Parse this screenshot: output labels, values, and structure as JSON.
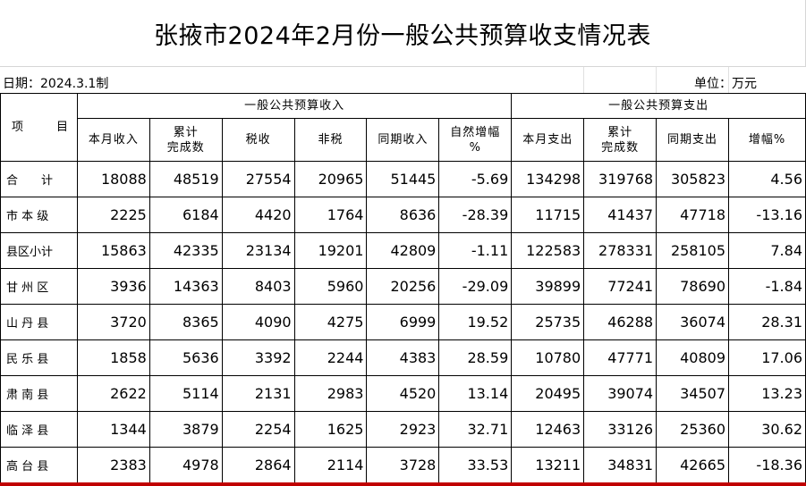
{
  "title": "张掖市2024年2月份一般公共预算收支情况表",
  "meta": {
    "date": "日期：2024.3.1制",
    "unit": "单位：万元"
  },
  "header": {
    "item_label": [
      "项",
      "目"
    ],
    "income_group": "一般公共预算收入",
    "expense_group": "一般公共预算支出",
    "columns": [
      [
        "本月收入"
      ],
      [
        "累计",
        "完成数"
      ],
      [
        "税收"
      ],
      [
        "非税"
      ],
      [
        "同期收入"
      ],
      [
        "自然增幅",
        "%"
      ],
      [
        "本月支出"
      ],
      [
        "累计",
        "完成数"
      ],
      [
        "同期支出"
      ],
      [
        "增幅%"
      ]
    ]
  },
  "rows": [
    {
      "name": "合　　计",
      "values": [
        "18088",
        "48519",
        "27554",
        "20965",
        "51445",
        "-5.69",
        "134298",
        "319768",
        "305823",
        "4.56"
      ]
    },
    {
      "name": "市 本 级",
      "values": [
        "2225",
        "6184",
        "4420",
        "1764",
        "8636",
        "-28.39",
        "11715",
        "41437",
        "47718",
        "-13.16"
      ]
    },
    {
      "name": "县区小计",
      "values": [
        "15863",
        "42335",
        "23134",
        "19201",
        "42809",
        "-1.11",
        "122583",
        "278331",
        "258105",
        "7.84"
      ]
    },
    {
      "name": "甘 州 区",
      "values": [
        "3936",
        "14363",
        "8403",
        "5960",
        "20256",
        "-29.09",
        "39899",
        "77241",
        "78690",
        "-1.84"
      ]
    },
    {
      "name": "山 丹 县",
      "values": [
        "3720",
        "8365",
        "4090",
        "4275",
        "6999",
        "19.52",
        "25735",
        "46288",
        "36074",
        "28.31"
      ]
    },
    {
      "name": "民 乐 县",
      "values": [
        "1858",
        "5636",
        "3392",
        "2244",
        "4383",
        "28.59",
        "10780",
        "47771",
        "40809",
        "17.06"
      ]
    },
    {
      "name": "肃 南 县",
      "values": [
        "2622",
        "5114",
        "2131",
        "2983",
        "4520",
        "13.14",
        "20495",
        "39074",
        "34507",
        "13.23"
      ]
    },
    {
      "name": "临 泽 县",
      "values": [
        "1344",
        "3879",
        "2254",
        "1625",
        "2923",
        "32.71",
        "12463",
        "33126",
        "25360",
        "30.62"
      ]
    },
    {
      "name": "高 台 县",
      "values": [
        "2383",
        "4978",
        "2864",
        "2114",
        "3728",
        "33.53",
        "13211",
        "34831",
        "42665",
        "-18.36"
      ]
    }
  ]
}
